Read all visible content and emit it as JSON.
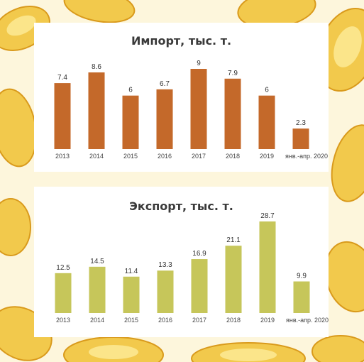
{
  "chart_data": [
    {
      "type": "bar",
      "title": "Импорт, тыс. т.",
      "categories": [
        "2013",
        "2014",
        "2015",
        "2016",
        "2017",
        "2018",
        "2019",
        "янв.-апр. 2020"
      ],
      "values": [
        7.4,
        8.6,
        6,
        6.7,
        9,
        7.9,
        6,
        2.3
      ],
      "value_labels": [
        "7.4",
        "8.6",
        "6",
        "6.7",
        "9",
        "7.9",
        "6",
        "2.3"
      ],
      "bar_color": "#c4692a",
      "ylim": [
        0,
        9
      ],
      "grid": false
    },
    {
      "type": "bar",
      "title": "Экспорт, тыс. т.",
      "categories": [
        "2013",
        "2014",
        "2015",
        "2016",
        "2017",
        "2018",
        "2019",
        "янв.-апр. 2020"
      ],
      "values": [
        12.5,
        14.5,
        11.4,
        13.3,
        16.9,
        21.1,
        28.7,
        9.9
      ],
      "value_labels": [
        "12.5",
        "14.5",
        "11.4",
        "13.3",
        "16.9",
        "21.1",
        "28.7",
        "9.9"
      ],
      "bar_color": "#c6c65a",
      "ylim": [
        0,
        28.7
      ],
      "grid": false
    }
  ],
  "colors": {
    "background": "#fdf6dc",
    "chip_fill": "#f2c94c",
    "chip_edge": "#e0a21e"
  }
}
